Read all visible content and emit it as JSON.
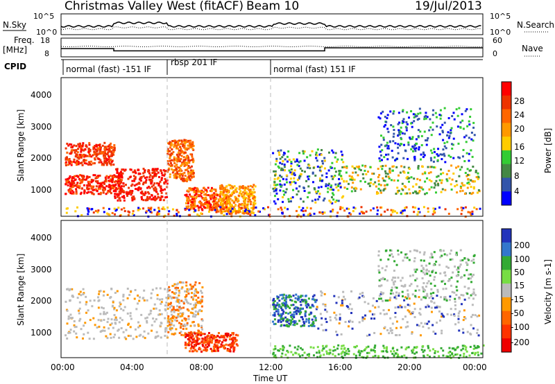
{
  "header": {
    "title": "Christmas Valley West (fitACF)",
    "beam": "Beam 10",
    "date": "19/Jul/2013"
  },
  "strips": {
    "nsky_label": "N.Sky",
    "nsearch_label": "N.Search",
    "nsky_ticks": [
      "10^5",
      "10^0"
    ],
    "nsearch_ticks": [
      "10^5",
      "10^0"
    ],
    "freq_label_1": "Freq.",
    "freq_label_2": "[MHz]",
    "freq_ticks": [
      "18",
      "8"
    ],
    "nave_label": "Nave",
    "nave_ticks": [
      "60",
      "0"
    ],
    "cpid_label": "CPID",
    "cpid_segments": [
      "normal (fast) -151 IF",
      "rbsp 201 IF",
      "normal (fast) 151 IF"
    ]
  },
  "power_panel": {
    "ylabel": "Slant Range [km]",
    "yticks": [
      "4000",
      "3000",
      "2000",
      "1000"
    ],
    "colorbar_label": "Power [dB]",
    "colorbar_ticks": [
      "28",
      "24",
      "20",
      "16",
      "12",
      "8",
      "4"
    ],
    "colors": [
      "#ff0000",
      "#ee3300",
      "#ff6600",
      "#ff9900",
      "#ffcc00",
      "#33cc33",
      "#448844",
      "#3355aa",
      "#0000ff"
    ]
  },
  "velocity_panel": {
    "ylabel": "Slant Range [km]",
    "yticks": [
      "4000",
      "3000",
      "2000",
      "1000"
    ],
    "colorbar_label": "Velocity [m s-1]",
    "colorbar_ticks": [
      "200",
      "100",
      "50",
      "15",
      "-15",
      "-50",
      "-100",
      "-200"
    ],
    "colors": [
      "#2233bb",
      "#3377cc",
      "#33aa33",
      "#77dd44",
      "#bbbbbb",
      "#ff9900",
      "#ff6600",
      "#ff3300",
      "#ee0000"
    ]
  },
  "xaxis": {
    "label": "Time UT",
    "ticks": [
      "00:00",
      "04:00",
      "08:00",
      "12:00",
      "16:00",
      "20:00",
      "00:00"
    ]
  },
  "chart_data": {
    "type": "heatmap",
    "title": "Christmas Valley West (fitACF)",
    "subtitle": "Beam 10  19/Jul/2013",
    "x_label": "Time UT",
    "x_range_hours": [
      0,
      24
    ],
    "y_label": "Slant Range [km]",
    "y_range_km": [
      180,
      4500
    ],
    "panels": [
      {
        "name": "Power [dB]",
        "range": [
          0,
          30
        ]
      },
      {
        "name": "Velocity [m s-1]",
        "range": [
          -200,
          200
        ]
      }
    ],
    "operating_modes": [
      {
        "label": "normal (fast) -151 IF",
        "start_hour": 0.0,
        "end_hour": 6.0
      },
      {
        "label": "rbsp 201 IF",
        "start_hour": 6.0,
        "end_hour": 12.0
      },
      {
        "label": "normal (fast) 151 IF",
        "start_hour": 12.0,
        "end_hour": 24.0
      }
    ],
    "frequency_mhz": [
      {
        "start_hour": 0.0,
        "end_hour": 3.0,
        "value": 12.5
      },
      {
        "start_hour": 3.0,
        "end_hour": 15.0,
        "value": 11.0
      },
      {
        "start_hour": 15.0,
        "end_hour": 24.0,
        "value": 13.0
      }
    ],
    "grid": false
  }
}
